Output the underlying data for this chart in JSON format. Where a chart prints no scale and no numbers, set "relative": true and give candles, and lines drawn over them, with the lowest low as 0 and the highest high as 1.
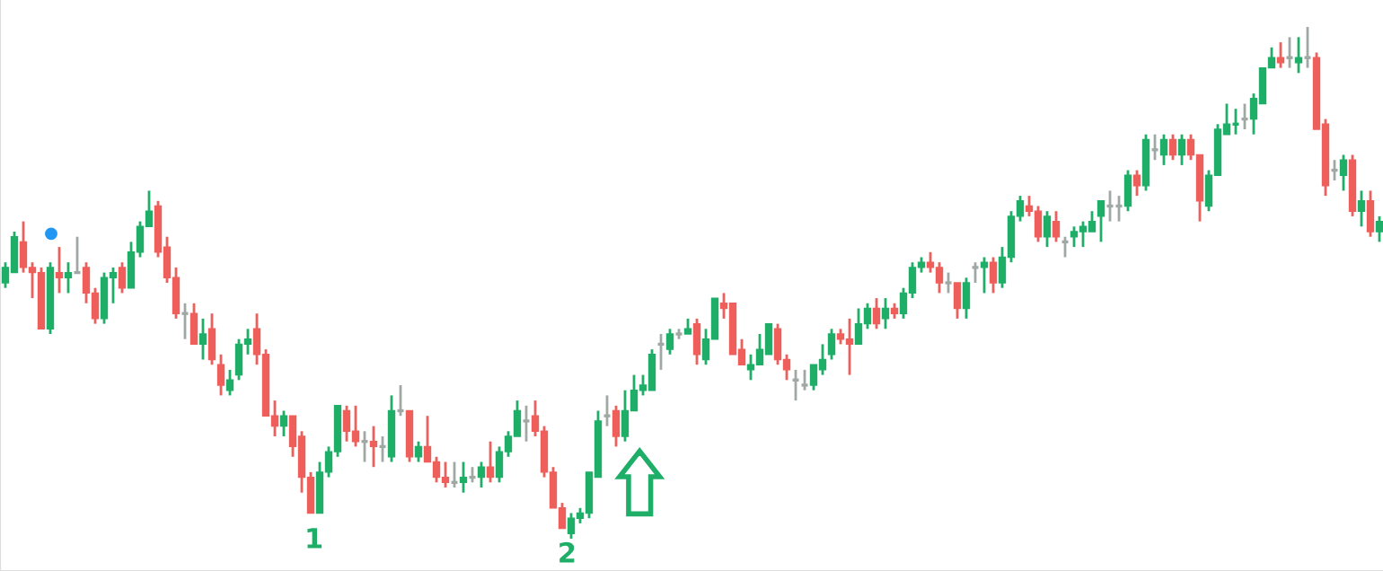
{
  "chart_data": {
    "type": "candlestick",
    "relative": true,
    "categories": [
      null,
      null,
      null,
      null,
      null,
      null,
      null,
      null,
      null,
      null,
      null,
      null,
      null,
      null,
      null,
      null,
      null,
      null,
      null,
      null,
      null,
      null,
      null,
      null,
      null,
      null,
      null,
      null,
      null,
      null,
      null,
      null,
      null,
      null,
      null,
      null,
      null,
      null,
      null,
      null,
      null,
      null,
      null,
      null,
      null,
      null,
      null,
      null,
      null,
      null,
      null,
      null,
      null,
      null,
      null,
      null,
      null,
      null,
      null,
      null,
      null,
      null,
      null,
      null,
      null,
      null,
      null,
      null,
      null,
      null,
      null,
      null,
      null,
      null,
      null,
      null,
      null,
      null,
      null,
      null,
      null,
      null,
      null,
      null,
      null,
      null,
      null,
      null,
      null,
      null,
      null,
      null,
      null,
      null,
      null,
      null,
      null,
      null,
      null,
      null,
      null,
      null,
      null,
      null,
      null,
      null,
      null,
      null,
      null,
      null,
      null,
      null,
      null,
      null,
      null,
      null,
      null,
      null,
      null,
      null,
      null,
      null,
      null,
      null,
      null,
      null,
      null,
      null,
      null,
      null,
      null,
      null,
      null,
      null,
      null,
      null,
      null,
      null,
      null,
      null,
      null,
      null,
      null,
      null,
      null,
      null,
      null,
      null,
      null,
      null,
      null,
      null,
      null,
      null
    ],
    "ohlc": [
      [
        0.5,
        0.54,
        0.49,
        0.53
      ],
      [
        0.52,
        0.6,
        0.52,
        0.59
      ],
      [
        0.58,
        0.62,
        0.52,
        0.53
      ],
      [
        0.53,
        0.54,
        0.47,
        0.52
      ],
      [
        0.52,
        0.53,
        0.41,
        0.41
      ],
      [
        0.41,
        0.54,
        0.4,
        0.53
      ],
      [
        0.52,
        0.57,
        0.48,
        0.51
      ],
      [
        0.51,
        0.54,
        0.48,
        0.52
      ],
      [
        0.52,
        0.59,
        0.52,
        0.52
      ],
      [
        0.53,
        0.54,
        0.46,
        0.48
      ],
      [
        0.48,
        0.49,
        0.42,
        0.43
      ],
      [
        0.43,
        0.52,
        0.42,
        0.51
      ],
      [
        0.51,
        0.53,
        0.46,
        0.52
      ],
      [
        0.53,
        0.54,
        0.48,
        0.49
      ],
      [
        0.49,
        0.58,
        0.49,
        0.56
      ],
      [
        0.56,
        0.62,
        0.55,
        0.61
      ],
      [
        0.61,
        0.68,
        0.61,
        0.64
      ],
      [
        0.65,
        0.66,
        0.55,
        0.56
      ],
      [
        0.57,
        0.59,
        0.5,
        0.51
      ],
      [
        0.51,
        0.53,
        0.43,
        0.44
      ],
      [
        0.44,
        0.46,
        0.39,
        0.44
      ],
      [
        0.44,
        0.46,
        0.38,
        0.38
      ],
      [
        0.38,
        0.43,
        0.35,
        0.4
      ],
      [
        0.41,
        0.44,
        0.34,
        0.35
      ],
      [
        0.34,
        0.36,
        0.28,
        0.3
      ],
      [
        0.29,
        0.33,
        0.28,
        0.31
      ],
      [
        0.32,
        0.39,
        0.31,
        0.38
      ],
      [
        0.38,
        0.41,
        0.36,
        0.39
      ],
      [
        0.41,
        0.44,
        0.34,
        0.36
      ],
      [
        0.36,
        0.37,
        0.24,
        0.24
      ],
      [
        0.24,
        0.27,
        0.2,
        0.22
      ],
      [
        0.22,
        0.25,
        0.2,
        0.24
      ],
      [
        0.24,
        0.24,
        0.16,
        0.18
      ],
      [
        0.2,
        0.21,
        0.09,
        0.12
      ],
      [
        0.12,
        0.13,
        0.05,
        0.05
      ],
      [
        0.05,
        0.15,
        0.05,
        0.13
      ],
      [
        0.13,
        0.18,
        0.12,
        0.17
      ],
      [
        0.17,
        0.26,
        0.16,
        0.26
      ],
      [
        0.25,
        0.26,
        0.19,
        0.21
      ],
      [
        0.21,
        0.26,
        0.18,
        0.19
      ],
      [
        0.19,
        0.21,
        0.15,
        0.19
      ],
      [
        0.19,
        0.22,
        0.14,
        0.18
      ],
      [
        0.18,
        0.2,
        0.15,
        0.18
      ],
      [
        0.16,
        0.28,
        0.15,
        0.25
      ],
      [
        0.25,
        0.3,
        0.24,
        0.25
      ],
      [
        0.25,
        0.25,
        0.15,
        0.16
      ],
      [
        0.16,
        0.19,
        0.15,
        0.18
      ],
      [
        0.18,
        0.24,
        0.15,
        0.15
      ],
      [
        0.15,
        0.16,
        0.11,
        0.12
      ],
      [
        0.12,
        0.15,
        0.1,
        0.11
      ],
      [
        0.11,
        0.15,
        0.1,
        0.11
      ],
      [
        0.11,
        0.15,
        0.09,
        0.12
      ],
      [
        0.12,
        0.14,
        0.11,
        0.12
      ],
      [
        0.12,
        0.15,
        0.1,
        0.14
      ],
      [
        0.14,
        0.19,
        0.11,
        0.12
      ],
      [
        0.12,
        0.18,
        0.11,
        0.17
      ],
      [
        0.17,
        0.21,
        0.16,
        0.2
      ],
      [
        0.2,
        0.27,
        0.2,
        0.25
      ],
      [
        0.23,
        0.26,
        0.19,
        0.23
      ],
      [
        0.24,
        0.27,
        0.2,
        0.21
      ],
      [
        0.21,
        0.22,
        0.12,
        0.13
      ],
      [
        0.13,
        0.14,
        0.06,
        0.06
      ],
      [
        0.06,
        0.07,
        0.02,
        0.02
      ],
      [
        0.01,
        0.05,
        0.0,
        0.04
      ],
      [
        0.04,
        0.06,
        0.03,
        0.05
      ],
      [
        0.05,
        0.13,
        0.04,
        0.13
      ],
      [
        0.12,
        0.25,
        0.12,
        0.23
      ],
      [
        0.24,
        0.28,
        0.22,
        0.24
      ],
      [
        0.25,
        0.26,
        0.18,
        0.2
      ],
      [
        0.2,
        0.29,
        0.19,
        0.25
      ],
      [
        0.25,
        0.32,
        0.25,
        0.29
      ],
      [
        0.29,
        0.32,
        0.28,
        0.3
      ],
      [
        0.29,
        0.37,
        0.29,
        0.36
      ],
      [
        0.38,
        0.4,
        0.33,
        0.38
      ],
      [
        0.37,
        0.41,
        0.36,
        0.4
      ],
      [
        0.4,
        0.41,
        0.39,
        0.4
      ],
      [
        0.4,
        0.43,
        0.4,
        0.41
      ],
      [
        0.42,
        0.43,
        0.34,
        0.36
      ],
      [
        0.35,
        0.41,
        0.34,
        0.39
      ],
      [
        0.39,
        0.47,
        0.39,
        0.47
      ],
      [
        0.46,
        0.48,
        0.43,
        0.45
      ],
      [
        0.46,
        0.46,
        0.36,
        0.36
      ],
      [
        0.37,
        0.39,
        0.34,
        0.34
      ],
      [
        0.33,
        0.36,
        0.31,
        0.34
      ],
      [
        0.34,
        0.4,
        0.34,
        0.37
      ],
      [
        0.36,
        0.42,
        0.36,
        0.42
      ],
      [
        0.41,
        0.42,
        0.34,
        0.35
      ],
      [
        0.35,
        0.36,
        0.31,
        0.33
      ],
      [
        0.31,
        0.33,
        0.27,
        0.31
      ],
      [
        0.3,
        0.33,
        0.29,
        0.3
      ],
      [
        0.3,
        0.34,
        0.29,
        0.34
      ],
      [
        0.33,
        0.38,
        0.32,
        0.35
      ],
      [
        0.36,
        0.41,
        0.35,
        0.4
      ],
      [
        0.4,
        0.41,
        0.38,
        0.39
      ],
      [
        0.39,
        0.43,
        0.32,
        0.38
      ],
      [
        0.38,
        0.45,
        0.38,
        0.42
      ],
      [
        0.42,
        0.46,
        0.41,
        0.45
      ],
      [
        0.45,
        0.47,
        0.41,
        0.42
      ],
      [
        0.43,
        0.47,
        0.41,
        0.45
      ],
      [
        0.45,
        0.46,
        0.43,
        0.44
      ],
      [
        0.44,
        0.49,
        0.43,
        0.48
      ],
      [
        0.48,
        0.54,
        0.47,
        0.53
      ],
      [
        0.53,
        0.55,
        0.52,
        0.54
      ],
      [
        0.54,
        0.56,
        0.52,
        0.53
      ],
      [
        0.53,
        0.54,
        0.48,
        0.5
      ],
      [
        0.5,
        0.52,
        0.48,
        0.5
      ],
      [
        0.5,
        0.5,
        0.43,
        0.45
      ],
      [
        0.45,
        0.51,
        0.43,
        0.5
      ],
      [
        0.53,
        0.54,
        0.5,
        0.53
      ],
      [
        0.53,
        0.55,
        0.48,
        0.54
      ],
      [
        0.54,
        0.55,
        0.48,
        0.5
      ],
      [
        0.5,
        0.57,
        0.49,
        0.55
      ],
      [
        0.55,
        0.64,
        0.54,
        0.63
      ],
      [
        0.63,
        0.67,
        0.62,
        0.66
      ],
      [
        0.65,
        0.67,
        0.63,
        0.64
      ],
      [
        0.64,
        0.65,
        0.58,
        0.59
      ],
      [
        0.59,
        0.64,
        0.57,
        0.63
      ],
      [
        0.62,
        0.64,
        0.58,
        0.59
      ],
      [
        0.58,
        0.59,
        0.55,
        0.58
      ],
      [
        0.59,
        0.61,
        0.57,
        0.6
      ],
      [
        0.6,
        0.62,
        0.57,
        0.61
      ],
      [
        0.6,
        0.64,
        0.6,
        0.62
      ],
      [
        0.63,
        0.66,
        0.58,
        0.66
      ],
      [
        0.65,
        0.68,
        0.62,
        0.65
      ],
      [
        0.65,
        0.67,
        0.62,
        0.65
      ],
      [
        0.65,
        0.72,
        0.64,
        0.71
      ],
      [
        0.71,
        0.72,
        0.67,
        0.69
      ],
      [
        0.69,
        0.79,
        0.68,
        0.78
      ],
      [
        0.76,
        0.79,
        0.74,
        0.76
      ],
      [
        0.75,
        0.79,
        0.73,
        0.78
      ],
      [
        0.78,
        0.79,
        0.74,
        0.75
      ],
      [
        0.75,
        0.79,
        0.73,
        0.78
      ],
      [
        0.78,
        0.79,
        0.74,
        0.75
      ],
      [
        0.75,
        0.75,
        0.62,
        0.66
      ],
      [
        0.65,
        0.72,
        0.64,
        0.71
      ],
      [
        0.71,
        0.81,
        0.71,
        0.8
      ],
      [
        0.79,
        0.85,
        0.79,
        0.81
      ],
      [
        0.81,
        0.84,
        0.79,
        0.81
      ],
      [
        0.82,
        0.85,
        0.8,
        0.82
      ],
      [
        0.82,
        0.87,
        0.79,
        0.86
      ],
      [
        0.85,
        0.92,
        0.85,
        0.92
      ],
      [
        0.92,
        0.96,
        0.92,
        0.94
      ],
      [
        0.94,
        0.97,
        0.92,
        0.93
      ],
      [
        0.94,
        0.98,
        0.92,
        0.94
      ],
      [
        0.93,
        0.98,
        0.91,
        0.94
      ],
      [
        0.94,
        1.0,
        0.92,
        0.94
      ],
      [
        0.94,
        0.95,
        0.8,
        0.8
      ],
      [
        0.81,
        0.82,
        0.67,
        0.69
      ],
      [
        0.72,
        0.74,
        0.7,
        0.72
      ],
      [
        0.71,
        0.75,
        0.68,
        0.74
      ],
      [
        0.74,
        0.75,
        0.63,
        0.64
      ],
      [
        0.64,
        0.68,
        0.61,
        0.66
      ],
      [
        0.66,
        0.68,
        0.59,
        0.6
      ],
      [
        0.6,
        0.63,
        0.58,
        0.62
      ]
    ],
    "colors": [
      "#1fae68",
      "#1fae68",
      "#ee5f5b",
      "#ee5f5b",
      "#ee5f5b",
      "#1fae68",
      "#ee5f5b",
      "#1fae68",
      "#a0a8a4",
      "#ee5f5b",
      "#ee5f5b",
      "#1fae68",
      "#1fae68",
      "#ee5f5b",
      "#1fae68",
      "#1fae68",
      "#1fae68",
      "#ee5f5b",
      "#ee5f5b",
      "#ee5f5b",
      "#a0a8a4",
      "#ee5f5b",
      "#1fae68",
      "#ee5f5b",
      "#ee5f5b",
      "#1fae68",
      "#1fae68",
      "#1fae68",
      "#ee5f5b",
      "#ee5f5b",
      "#ee5f5b",
      "#1fae68",
      "#ee5f5b",
      "#ee5f5b",
      "#ee5f5b",
      "#1fae68",
      "#1fae68",
      "#1fae68",
      "#ee5f5b",
      "#ee5f5b",
      "#a0a8a4",
      "#ee5f5b",
      "#a0a8a4",
      "#1fae68",
      "#a0a8a4",
      "#ee5f5b",
      "#1fae68",
      "#ee5f5b",
      "#ee5f5b",
      "#ee5f5b",
      "#a0a8a4",
      "#1fae68",
      "#a0a8a4",
      "#1fae68",
      "#ee5f5b",
      "#1fae68",
      "#1fae68",
      "#1fae68",
      "#a0a8a4",
      "#ee5f5b",
      "#ee5f5b",
      "#ee5f5b",
      "#ee5f5b",
      "#1fae68",
      "#1fae68",
      "#1fae68",
      "#1fae68",
      "#a0a8a4",
      "#ee5f5b",
      "#1fae68",
      "#1fae68",
      "#1fae68",
      "#1fae68",
      "#a0a8a4",
      "#1fae68",
      "#a0a8a4",
      "#1fae68",
      "#ee5f5b",
      "#1fae68",
      "#1fae68",
      "#ee5f5b",
      "#ee5f5b",
      "#ee5f5b",
      "#1fae68",
      "#1fae68",
      "#1fae68",
      "#ee5f5b",
      "#ee5f5b",
      "#a0a8a4",
      "#a0a8a4",
      "#1fae68",
      "#1fae68",
      "#1fae68",
      "#ee5f5b",
      "#ee5f5b",
      "#1fae68",
      "#1fae68",
      "#ee5f5b",
      "#1fae68",
      "#ee5f5b",
      "#1fae68",
      "#1fae68",
      "#1fae68",
      "#ee5f5b",
      "#ee5f5b",
      "#a0a8a4",
      "#ee5f5b",
      "#1fae68",
      "#a0a8a4",
      "#1fae68",
      "#ee5f5b",
      "#1fae68",
      "#1fae68",
      "#1fae68",
      "#ee5f5b",
      "#ee5f5b",
      "#1fae68",
      "#ee5f5b",
      "#a0a8a4",
      "#1fae68",
      "#1fae68",
      "#1fae68",
      "#1fae68",
      "#a0a8a4",
      "#a0a8a4",
      "#1fae68",
      "#ee5f5b",
      "#1fae68",
      "#a0a8a4",
      "#1fae68",
      "#ee5f5b",
      "#1fae68",
      "#ee5f5b",
      "#ee5f5b",
      "#1fae68",
      "#1fae68",
      "#1fae68",
      "#1fae68",
      "#a0a8a4",
      "#1fae68",
      "#1fae68",
      "#1fae68",
      "#ee5f5b",
      "#a0a8a4",
      "#1fae68",
      "#a0a8a4",
      "#ee5f5b",
      "#ee5f5b",
      "#a0a8a4",
      "#1fae68",
      "#ee5f5b",
      "#1fae68",
      "#ee5f5b",
      "#1fae68"
    ],
    "annotations": [
      "1",
      "2"
    ]
  }
}
